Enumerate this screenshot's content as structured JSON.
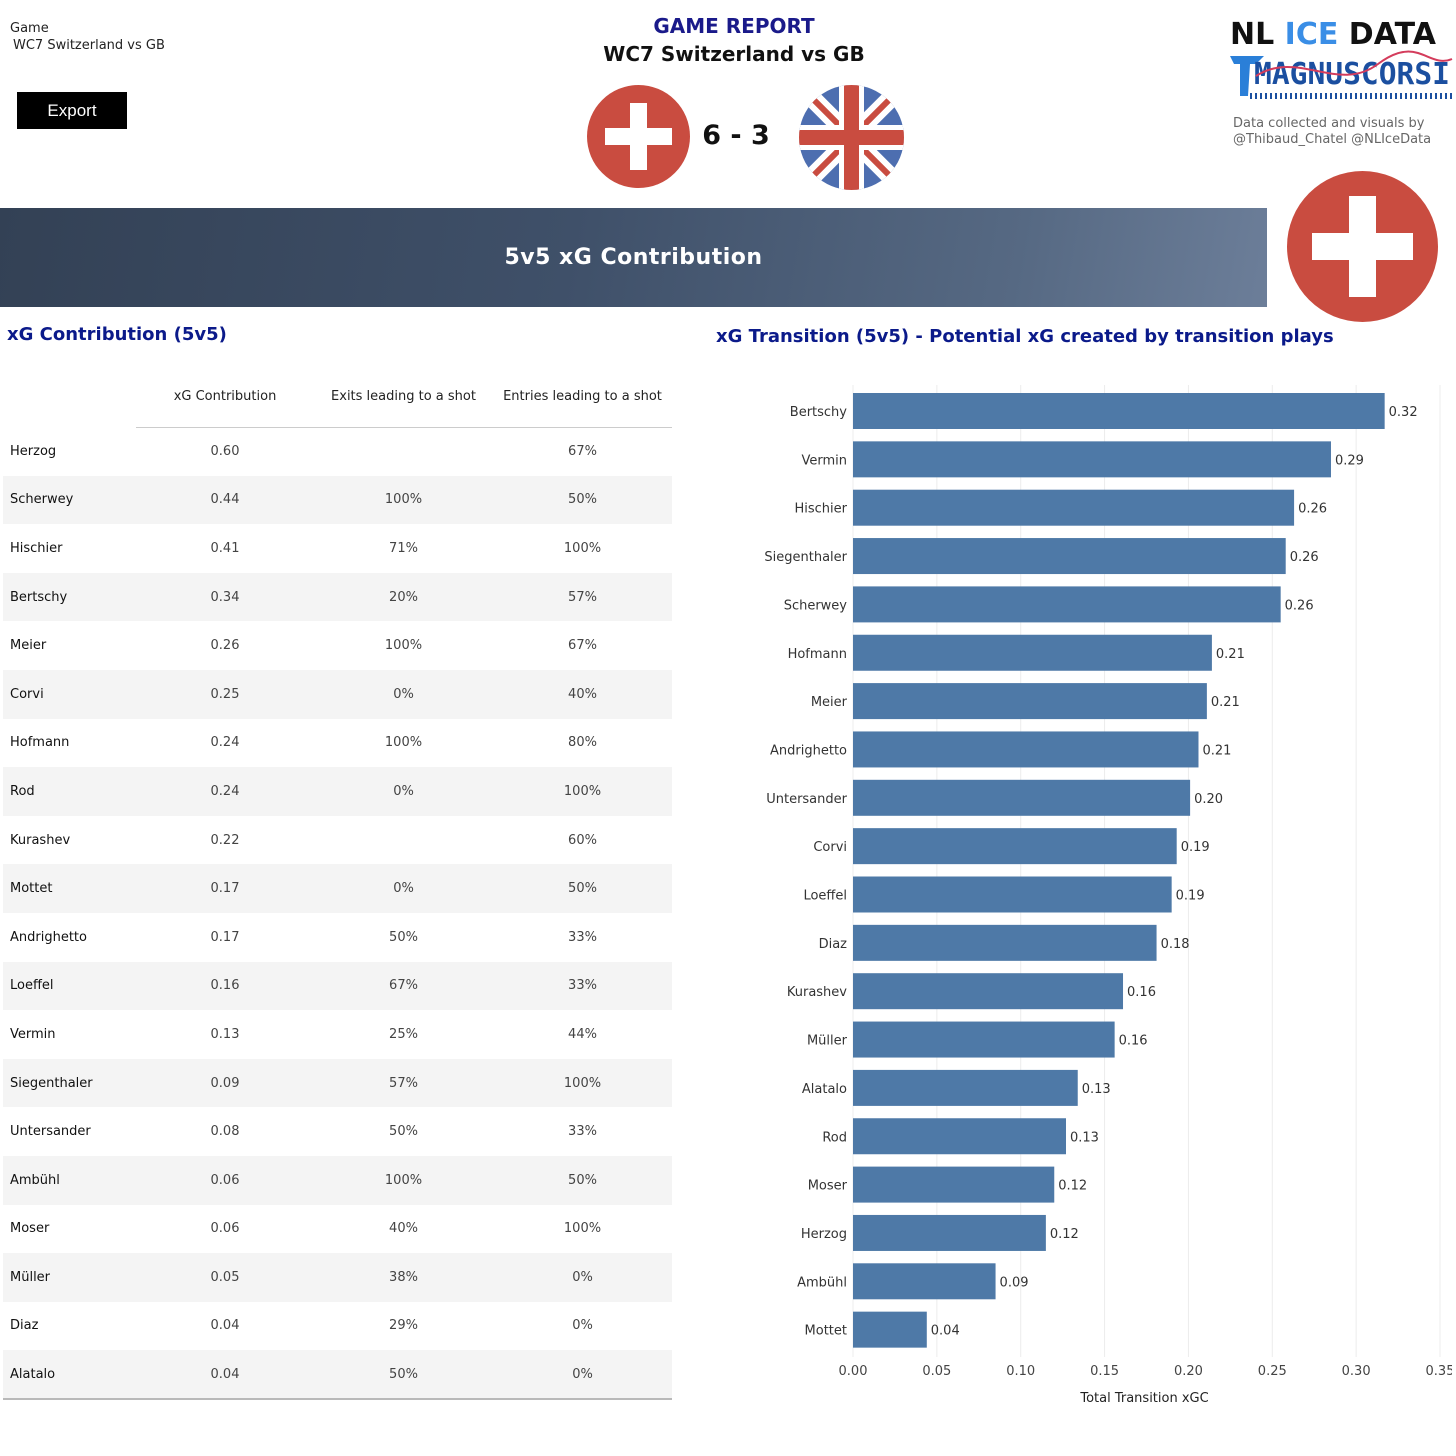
{
  "filter": {
    "label": "Game",
    "value": "WC7 Switzerland vs GB"
  },
  "export_label": "Export",
  "header": {
    "title": "GAME REPORT",
    "subtitle": "WC7 Switzerland vs GB",
    "score": "6 - 3"
  },
  "brand": {
    "line1_a": "NL ",
    "line1_b": "ICE",
    "line1_c": " DATA",
    "line2": "MAGNUSCORSI"
  },
  "credit": {
    "line1": "Data collected and visuals by",
    "line2": "@Thibaud_Chatel @NLIceData"
  },
  "banner": {
    "title": "5v5 xG Contribution"
  },
  "flags": {
    "home": "switzerland-flag",
    "away": "great-britain-flag",
    "swiss_red": "#c94c40",
    "uk_blue": "#4d6eb0",
    "uk_red": "#c94c40"
  },
  "table": {
    "title": "xG Contribution (5v5)",
    "headers": [
      "",
      "xG Contribution",
      "Exits leading to a shot",
      "Entries leading to a shot"
    ],
    "rows": [
      [
        "Herzog",
        "0.60",
        "",
        "67%"
      ],
      [
        "Scherwey",
        "0.44",
        "100%",
        "50%"
      ],
      [
        "Hischier",
        "0.41",
        "71%",
        "100%"
      ],
      [
        "Bertschy",
        "0.34",
        "20%",
        "57%"
      ],
      [
        "Meier",
        "0.26",
        "100%",
        "67%"
      ],
      [
        "Corvi",
        "0.25",
        "0%",
        "40%"
      ],
      [
        "Hofmann",
        "0.24",
        "100%",
        "80%"
      ],
      [
        "Rod",
        "0.24",
        "0%",
        "100%"
      ],
      [
        "Kurashev",
        "0.22",
        "",
        "60%"
      ],
      [
        "Mottet",
        "0.17",
        "0%",
        "50%"
      ],
      [
        "Andrighetto",
        "0.17",
        "50%",
        "33%"
      ],
      [
        "Loeffel",
        "0.16",
        "67%",
        "33%"
      ],
      [
        "Vermin",
        "0.13",
        "25%",
        "44%"
      ],
      [
        "Siegenthaler",
        "0.09",
        "57%",
        "100%"
      ],
      [
        "Untersander",
        "0.08",
        "50%",
        "33%"
      ],
      [
        "Ambühl",
        "0.06",
        "100%",
        "50%"
      ],
      [
        "Moser",
        "0.06",
        "40%",
        "100%"
      ],
      [
        "Müller",
        "0.05",
        "38%",
        "0%"
      ],
      [
        "Diaz",
        "0.04",
        "29%",
        "0%"
      ],
      [
        "Alatalo",
        "0.04",
        "50%",
        "0%"
      ]
    ]
  },
  "chart_data": {
    "type": "bar",
    "orientation": "horizontal",
    "title": "xG Transition (5v5) - Potential xG created by transition plays",
    "xlabel": "Total Transition xGC",
    "ylabel": "",
    "xlim": [
      0,
      0.35
    ],
    "ticks": [
      "0.00",
      "0.05",
      "0.10",
      "0.15",
      "0.20",
      "0.25",
      "0.30",
      "0.35"
    ],
    "grid": true,
    "bar_color": "#4e79a7",
    "categories": [
      "Bertschy",
      "Vermin",
      "Hischier",
      "Siegenthaler",
      "Scherwey",
      "Hofmann",
      "Meier",
      "Andrighetto",
      "Untersander",
      "Corvi",
      "Loeffel",
      "Diaz",
      "Kurashev",
      "Müller",
      "Alatalo",
      "Rod",
      "Moser",
      "Herzog",
      "Ambühl",
      "Mottet"
    ],
    "values": [
      0.32,
      0.29,
      0.26,
      0.26,
      0.26,
      0.21,
      0.21,
      0.21,
      0.2,
      0.19,
      0.19,
      0.18,
      0.16,
      0.16,
      0.13,
      0.13,
      0.12,
      0.12,
      0.09,
      0.04
    ],
    "bar_lengths": [
      0.317,
      0.285,
      0.263,
      0.258,
      0.255,
      0.214,
      0.211,
      0.206,
      0.201,
      0.193,
      0.19,
      0.181,
      0.161,
      0.156,
      0.134,
      0.127,
      0.12,
      0.115,
      0.085,
      0.044
    ]
  }
}
